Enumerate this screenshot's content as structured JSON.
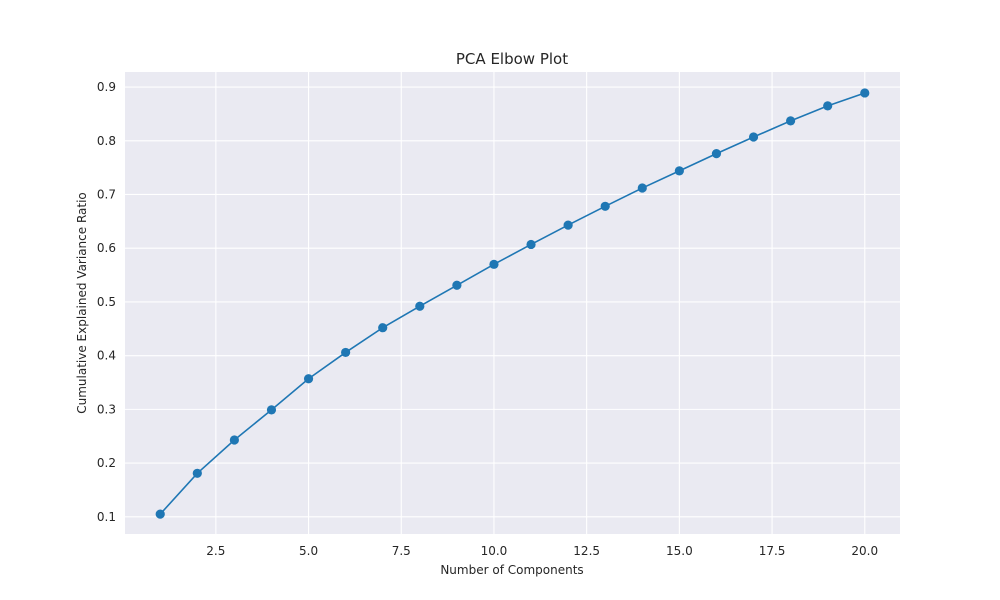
{
  "chart_data": {
    "type": "line",
    "title": "PCA Elbow Plot",
    "xlabel": "Number of Components",
    "ylabel": "Cumulative Explained Variance Ratio",
    "xlim": [
      0.05,
      20.95
    ],
    "ylim": [
      0.068,
      0.928
    ],
    "xticks": [
      2.5,
      5.0,
      7.5,
      10.0,
      12.5,
      15.0,
      17.5,
      20.0
    ],
    "xtick_labels": [
      "2.5",
      "5.0",
      "7.5",
      "10.0",
      "12.5",
      "15.0",
      "17.5",
      "20.0"
    ],
    "yticks": [
      0.1,
      0.2,
      0.3,
      0.4,
      0.5,
      0.6,
      0.7,
      0.8,
      0.9
    ],
    "ytick_labels": [
      "0.1",
      "0.2",
      "0.3",
      "0.4",
      "0.5",
      "0.6",
      "0.7",
      "0.8",
      "0.9"
    ],
    "grid": true,
    "marker": "circle",
    "background_color": "#eaeaf2",
    "series": [
      {
        "color": "#1f77b4",
        "x": [
          1,
          2,
          3,
          4,
          5,
          6,
          7,
          8,
          9,
          10,
          11,
          12,
          13,
          14,
          15,
          16,
          17,
          18,
          19,
          20
        ],
        "values": [
          0.105,
          0.181,
          0.243,
          0.299,
          0.357,
          0.406,
          0.452,
          0.492,
          0.531,
          0.57,
          0.607,
          0.643,
          0.678,
          0.712,
          0.744,
          0.776,
          0.807,
          0.837,
          0.865,
          0.889
        ]
      }
    ]
  }
}
